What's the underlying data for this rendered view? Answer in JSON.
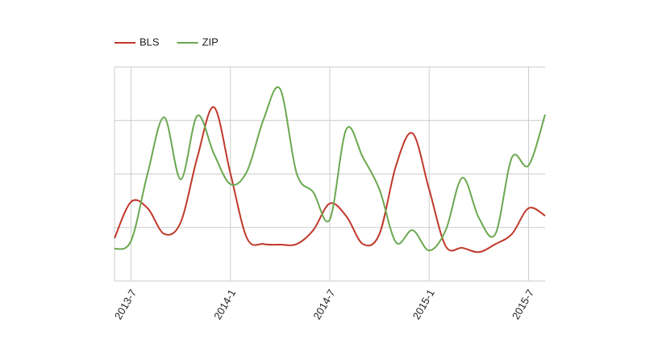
{
  "chart_data": {
    "type": "line",
    "categories": [
      null,
      "2013-7",
      null,
      null,
      null,
      null,
      null,
      "2014-1",
      null,
      null,
      null,
      null,
      null,
      "2014-7",
      null,
      null,
      null,
      null,
      null,
      "2015-1",
      null,
      null,
      null,
      null,
      null,
      "2015-7",
      null
    ],
    "series": [
      {
        "name": "BLS",
        "color": "#c0392b",
        "values": [
          0.8,
          1.48,
          1.36,
          0.88,
          1.1,
          2.31,
          3.25,
          2.01,
          0.8,
          0.69,
          0.68,
          0.69,
          0.95,
          1.45,
          1.21,
          0.69,
          0.88,
          2.16,
          2.76,
          1.71,
          0.65,
          0.62,
          0.54,
          0.69,
          0.88,
          1.36,
          1.22
        ]
      },
      {
        "name": "ZIP",
        "color": "#6aa84f",
        "values": [
          0.6,
          0.75,
          2.01,
          3.06,
          1.9,
          3.09,
          2.38,
          1.81,
          2.05,
          3.02,
          3.59,
          2.01,
          1.66,
          1.15,
          2.84,
          2.31,
          1.71,
          0.72,
          0.95,
          0.57,
          0.95,
          1.93,
          1.18,
          0.88,
          2.31,
          2.16,
          3.11
        ]
      }
    ],
    "ylim": [
      0,
      4
    ],
    "yticks": [
      0,
      1,
      2,
      3,
      4
    ],
    "grid": true,
    "legend": "top"
  }
}
